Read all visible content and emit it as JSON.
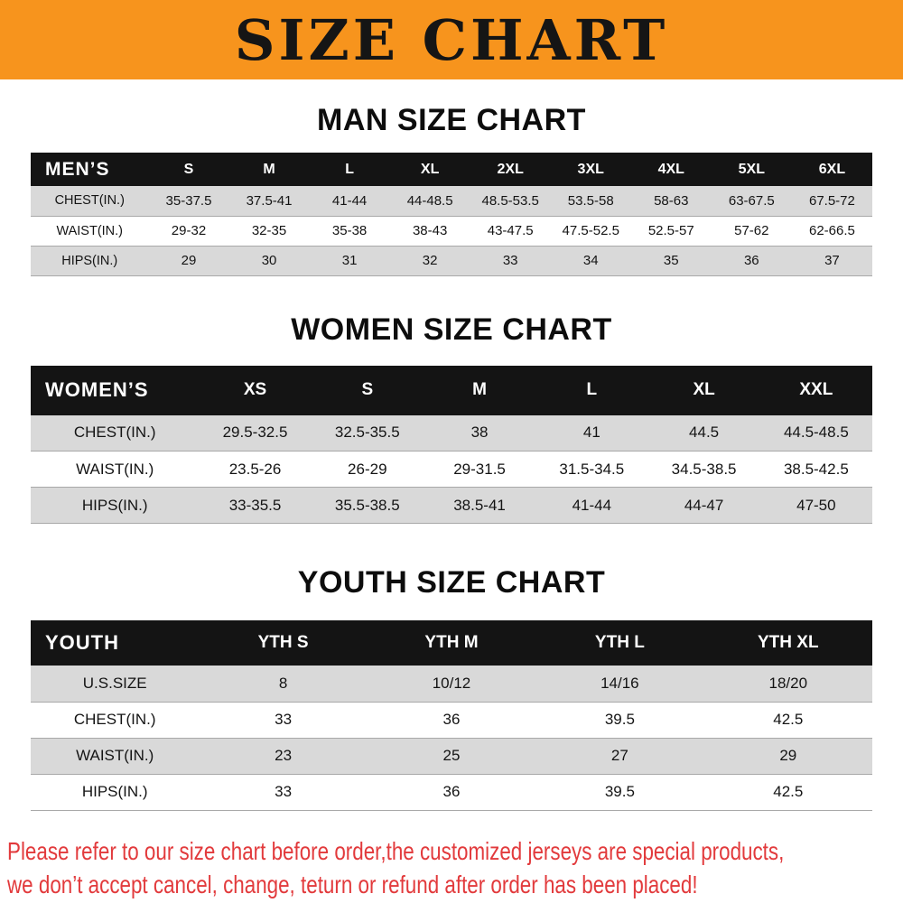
{
  "banner": {
    "title": "SIZE CHART"
  },
  "sections": [
    {
      "id": "men",
      "title": "MAN SIZE CHART",
      "header": [
        "MEN’S",
        "S",
        "M",
        "L",
        "XL",
        "2XL",
        "3XL",
        "4XL",
        "5XL",
        "6XL"
      ],
      "rows": [
        [
          "CHEST(IN.)",
          "35-37.5",
          "37.5-41",
          "41-44",
          "44-48.5",
          "48.5-53.5",
          "53.5-58",
          "58-63",
          "63-67.5",
          "67.5-72"
        ],
        [
          "WAIST(IN.)",
          "29-32",
          "32-35",
          "35-38",
          "38-43",
          "43-47.5",
          "47.5-52.5",
          "52.5-57",
          "57-62",
          "62-66.5"
        ],
        [
          "HIPS(IN.)",
          "29",
          "30",
          "31",
          "32",
          "33",
          "34",
          "35",
          "36",
          "37"
        ]
      ]
    },
    {
      "id": "women",
      "title": "WOMEN SIZE CHART",
      "header": [
        "WOMEN’S",
        "XS",
        "S",
        "M",
        "L",
        "XL",
        "XXL"
      ],
      "rows": [
        [
          "CHEST(IN.)",
          "29.5-32.5",
          "32.5-35.5",
          "38",
          "41",
          "44.5",
          "44.5-48.5"
        ],
        [
          "WAIST(IN.)",
          "23.5-26",
          "26-29",
          "29-31.5",
          "31.5-34.5",
          "34.5-38.5",
          "38.5-42.5"
        ],
        [
          "HIPS(IN.)",
          "33-35.5",
          "35.5-38.5",
          "38.5-41",
          "41-44",
          "44-47",
          "47-50"
        ]
      ]
    },
    {
      "id": "youth",
      "title": "YOUTH SIZE CHART",
      "header": [
        "YOUTH",
        "YTH S",
        "YTH M",
        "YTH L",
        "YTH XL"
      ],
      "rows": [
        [
          "U.S.SIZE",
          "8",
          "10/12",
          "14/16",
          "18/20"
        ],
        [
          "CHEST(IN.)",
          "33",
          "36",
          "39.5",
          "42.5"
        ],
        [
          "WAIST(IN.)",
          "23",
          "25",
          "27",
          "29"
        ],
        [
          "HIPS(IN.)",
          "33",
          "36",
          "39.5",
          "42.5"
        ]
      ]
    }
  ],
  "footer": {
    "line1": "Please refer to our size chart before order,the customized jerseys are special products,",
    "line2": "we don’t accept cancel, change, teturn or refund after order has been placed!"
  },
  "colors": {
    "banner_bg": "#f7941d",
    "header_bg": "#141414",
    "stripe_bg": "#d9d9d9",
    "disclaimer_red": "#e23a3c",
    "text_black": "#111111"
  }
}
